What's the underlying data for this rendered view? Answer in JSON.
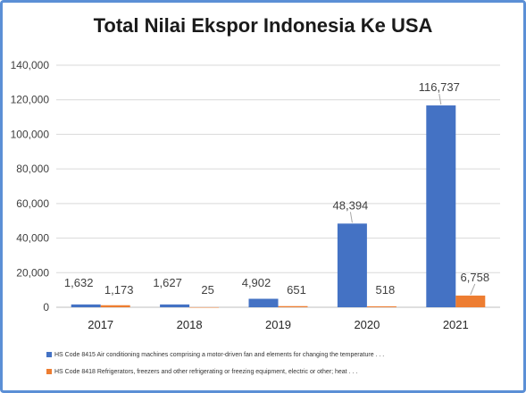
{
  "chart_data": {
    "type": "bar",
    "title": "Total Nilai Ekspor Indonesia Ke USA",
    "categories": [
      "2017",
      "2018",
      "2019",
      "2020",
      "2021"
    ],
    "series": [
      {
        "name": "HS Code 8415 Air conditioning machines comprising a motor-driven fan and elements for changing the temperature . . .",
        "color": "#4472c4",
        "values": [
          1632,
          1627,
          4902,
          48394,
          116737
        ],
        "labels": [
          "1,632",
          "1,627",
          "4,902",
          "48,394",
          "116,737"
        ]
      },
      {
        "name": "HS Code 8418 Refrigerators, freezers and other refrigerating or freezing equipment, electric or other; heat . . .",
        "color": "#ed7d31",
        "values": [
          1173,
          25,
          651,
          518,
          6758
        ],
        "labels": [
          "1,173",
          "25",
          "651",
          "518",
          "6,758"
        ]
      }
    ],
    "yticks": [
      "0",
      "20,000",
      "40,000",
      "60,000",
      "80,000",
      "100,000",
      "120,000",
      "140,000"
    ],
    "ylim": [
      0,
      140000
    ],
    "grid": true,
    "legend": "bottom"
  }
}
